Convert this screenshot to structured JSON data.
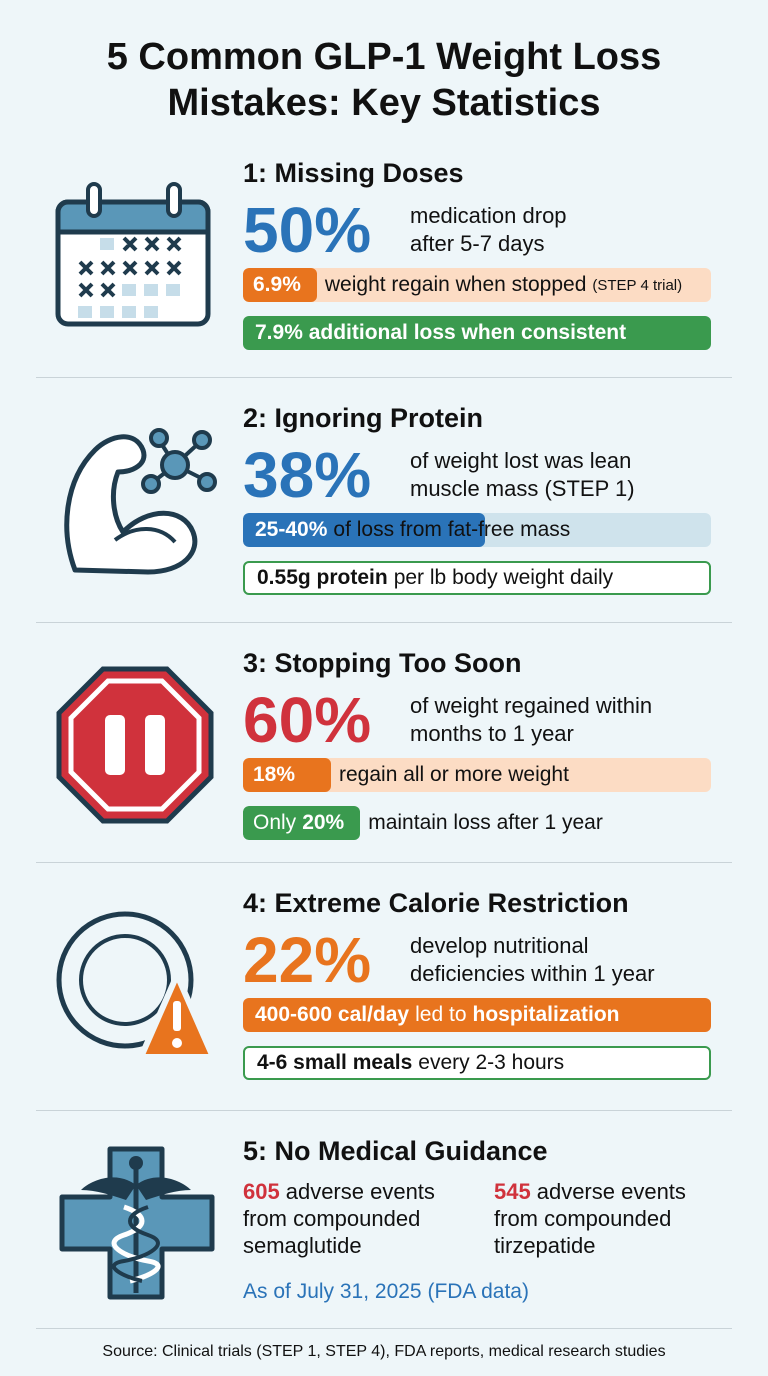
{
  "title": "5 Common GLP-1 Weight Loss Mistakes: Key Statistics",
  "sections": [
    {
      "heading": "1: Missing Doses",
      "stat": "50%",
      "desc": [
        "medication drop",
        "after 5-7 days"
      ],
      "rows": [
        {
          "parts": [
            {
              "text": "6.9%",
              "strong": true
            },
            {
              "text": "weight regain when stopped"
            },
            {
              "text": "(STEP 4 trial)",
              "small": true
            }
          ]
        },
        {
          "parts": [
            {
              "text": "7.9% additional loss when consistent",
              "strong": true
            }
          ]
        }
      ]
    },
    {
      "heading": "2: Ignoring Protein",
      "stat": "38%",
      "desc": [
        "of weight lost was lean",
        "muscle mass (STEP 1)"
      ],
      "rows": [
        {
          "parts": [
            {
              "text": "25-40%",
              "strong": true
            },
            {
              "text": "of loss from fat-free mass"
            }
          ]
        },
        {
          "parts": [
            {
              "text": "0.55g protein",
              "strong": true
            },
            {
              "text": "per lb body weight daily"
            }
          ]
        }
      ]
    },
    {
      "heading": "3: Stopping Too Soon",
      "stat": "60%",
      "desc": [
        "of weight regained within",
        "months to 1 year"
      ],
      "rows": [
        {
          "parts": [
            {
              "text": "18%",
              "strong": true
            },
            {
              "text": "regain all or more weight"
            }
          ]
        },
        {
          "parts": [
            {
              "text": "Only"
            },
            {
              "text": "20%",
              "strong": true
            },
            {
              "text": "maintain loss after 1 year"
            }
          ]
        }
      ]
    },
    {
      "heading": "4: Extreme Calorie Restriction",
      "stat": "22%",
      "desc": [
        "develop nutritional",
        "deficiencies within 1 year"
      ],
      "rows": [
        {
          "parts": [
            {
              "text": "400-600 cal/day",
              "strong": true
            },
            {
              "text": "led to"
            },
            {
              "text": "hospitalization",
              "strong": true
            }
          ]
        },
        {
          "parts": [
            {
              "text": "4-6 small meals",
              "strong": true
            },
            {
              "text": "every 2-3 hours"
            }
          ]
        }
      ]
    },
    {
      "heading": "5: No Medical Guidance",
      "items": [
        {
          "value": 605,
          "lines": [
            "adverse events",
            "from compounded",
            "semaglutide"
          ]
        },
        {
          "value": 545,
          "lines": [
            "adverse events",
            "from compounded",
            "tirzepatide"
          ]
        }
      ],
      "note": "As of July 31, 2025 (FDA data)"
    }
  ],
  "source": "Source: Clinical trials (STEP 1, STEP 4), FDA reports, medical research studies"
}
